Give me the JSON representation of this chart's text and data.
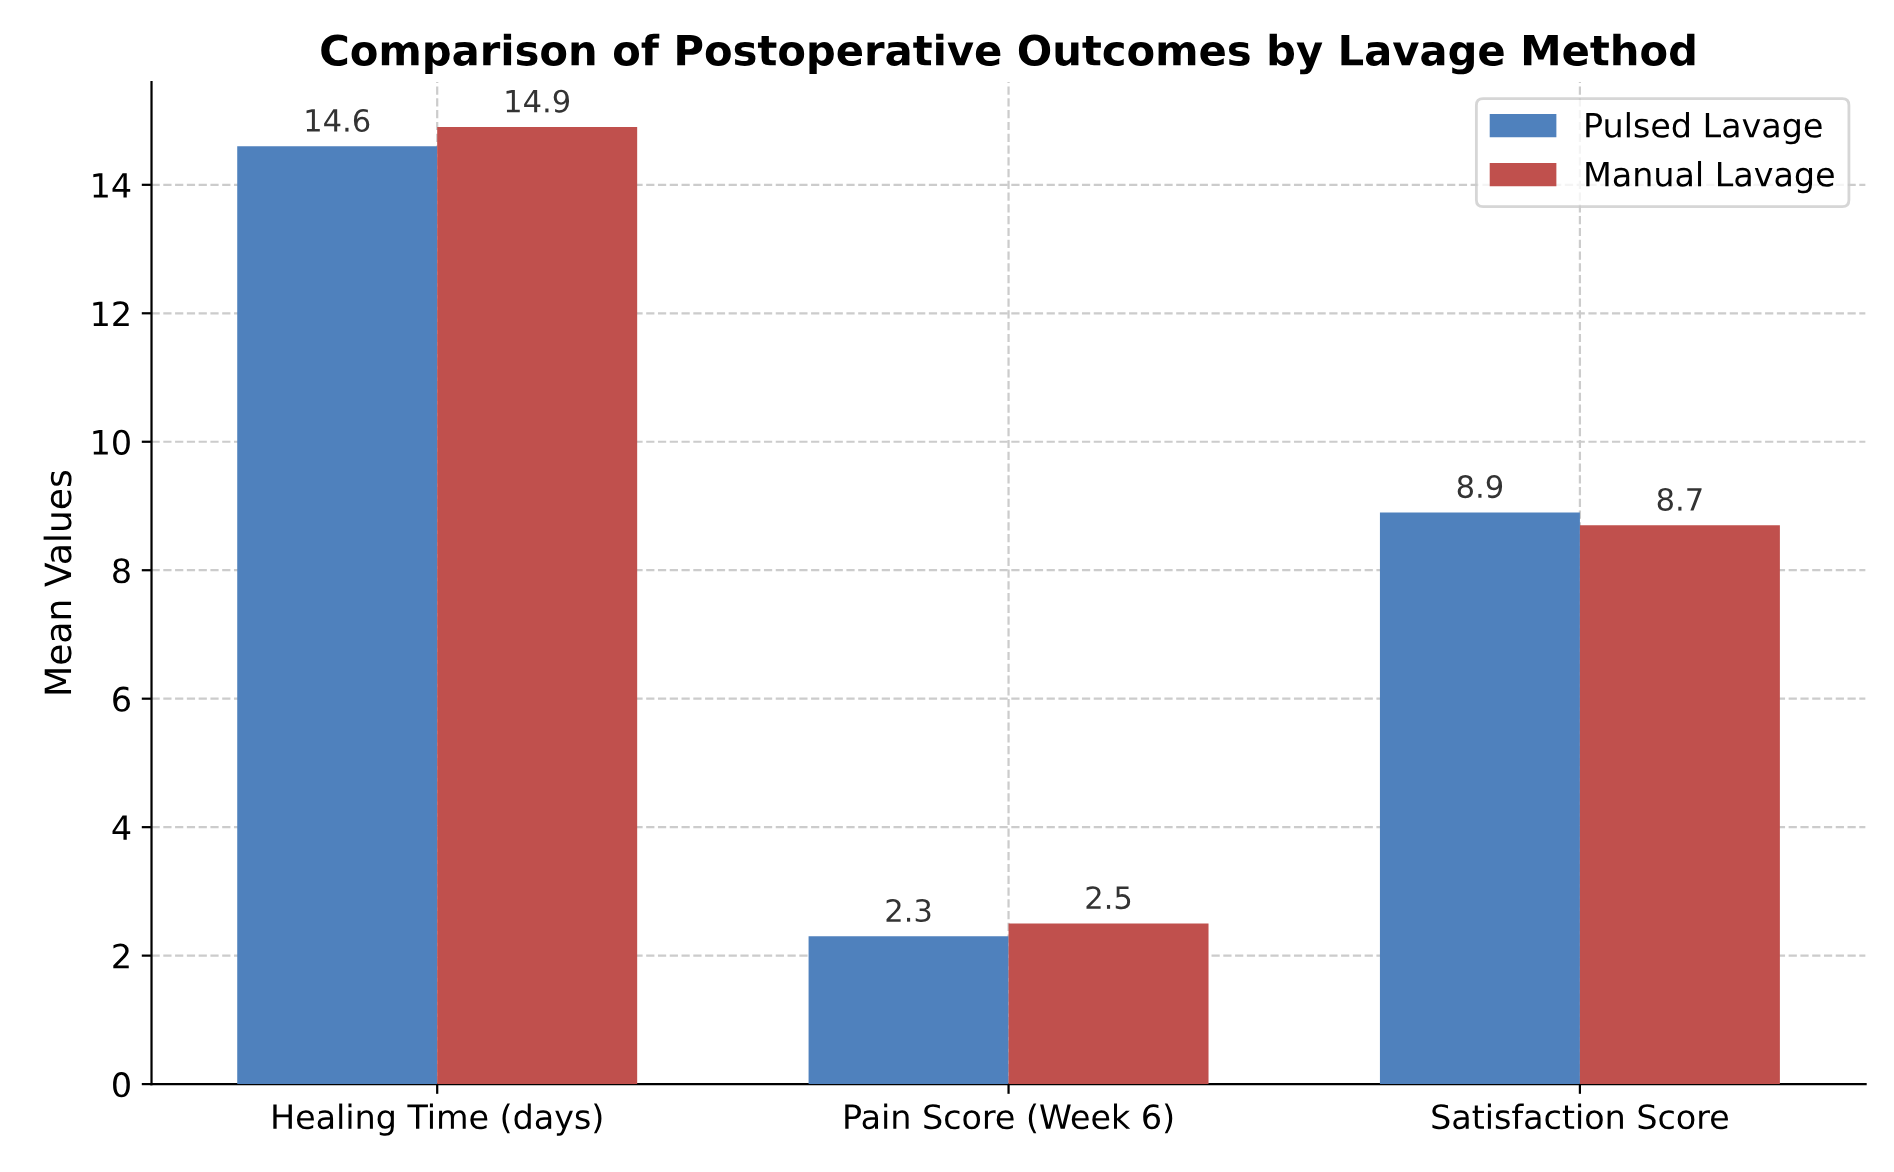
{
  "chart_data": {
    "type": "bar",
    "title": "Comparison of Postoperative Outcomes by Lavage Method",
    "ylabel": "Mean Values",
    "categories": [
      "Healing Time (days)",
      "Pain Score (Week 6)",
      "Satisfaction Score"
    ],
    "series": [
      {
        "name": "Pulsed Lavage",
        "color": "#4f81bd",
        "values": [
          14.6,
          2.3,
          8.9
        ]
      },
      {
        "name": "Manual Lavage",
        "color": "#c0504d",
        "values": [
          14.9,
          2.5,
          8.7
        ]
      }
    ],
    "ylim": [
      0,
      15.6
    ],
    "yticks": [
      0,
      2,
      4,
      6,
      8,
      10,
      12,
      14
    ],
    "grid": true,
    "legend": "top right",
    "data_labels": true
  }
}
